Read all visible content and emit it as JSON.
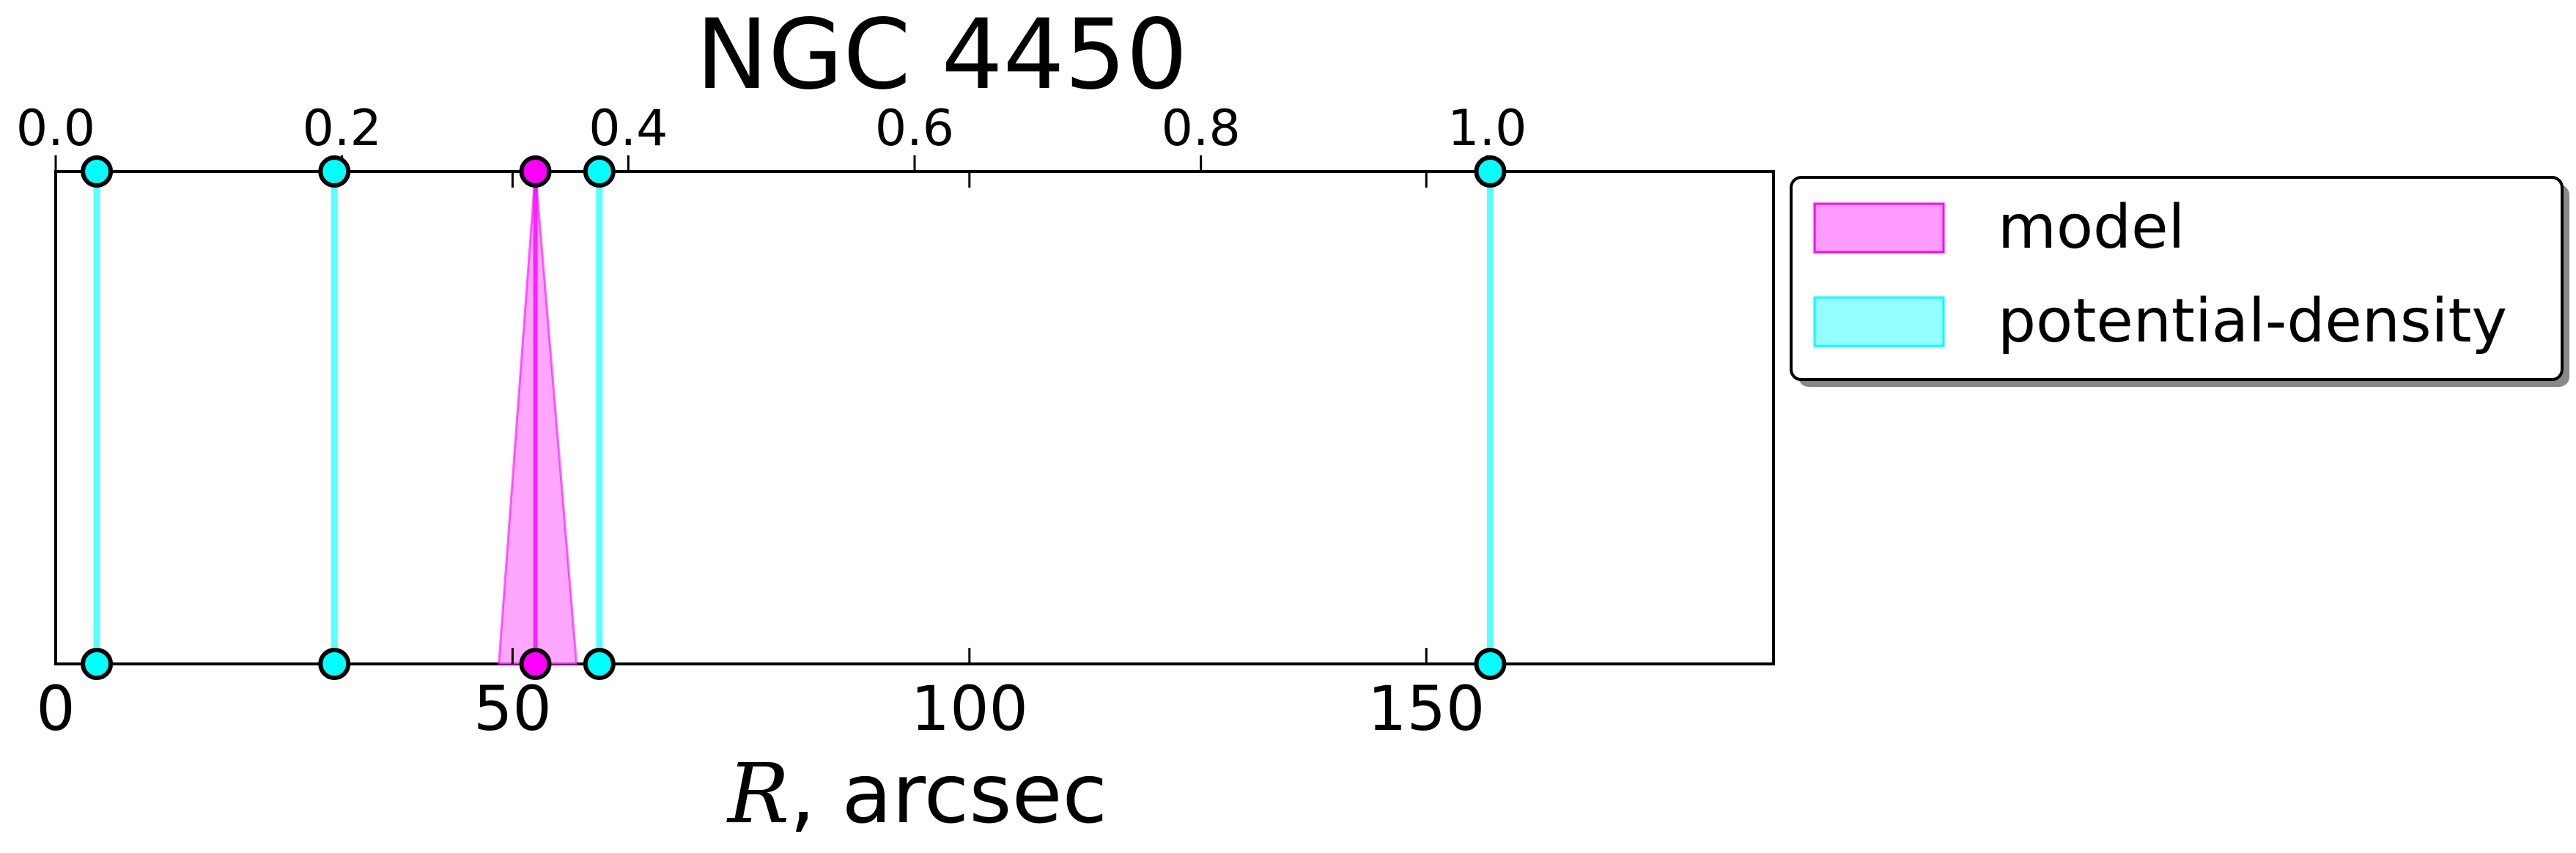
{
  "chart_data": {
    "type": "line",
    "title": "NGC 4450",
    "xlabel_symbol": "R",
    "xlabel_text": ", arcsec",
    "xlim": [
      0,
      188
    ],
    "xticks": [
      0,
      50,
      100,
      150
    ],
    "top_axis": {
      "xlim": [
        0,
        1.2
      ],
      "ticks": [
        0.0,
        0.2,
        0.4,
        0.6,
        0.8,
        1.0
      ],
      "tick_labels": [
        "0.0",
        "0.2",
        "0.4",
        "0.6",
        "0.8",
        "1.0"
      ]
    },
    "legend": {
      "placement": "outside-right-top",
      "entries": [
        "model",
        "potential-density"
      ]
    },
    "series": [
      {
        "name": "model",
        "color": "#ff00ff",
        "fill": "#ff88ff",
        "x": [
          52.5
        ],
        "range": [
          [
            48.5,
            57.0
          ]
        ]
      },
      {
        "name": "potential-density",
        "color": "#00ffff",
        "fill": "#80ffff",
        "x": [
          4.5,
          30.5,
          59.5,
          157.0
        ]
      }
    ],
    "grid": false
  }
}
